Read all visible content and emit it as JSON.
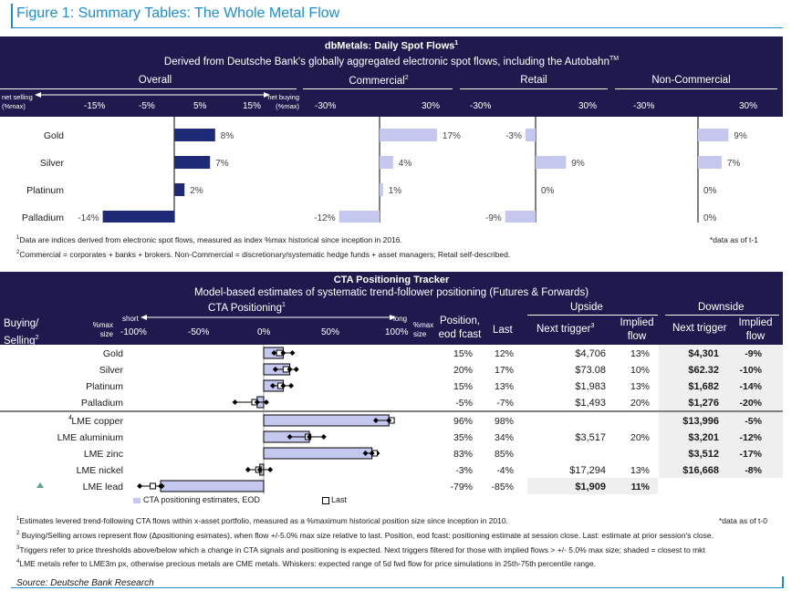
{
  "figure_title": "Figure 1: Summary Tables: The Whole Metal Flow",
  "spot": {
    "title": "dbMetals: Daily Spot Flows",
    "title_sup": "1",
    "subtitle": "Derived from Deutsche Bank's globally aggregated electronic spot flows, including the Autobahn",
    "subtitle_sup": "TM",
    "groups": [
      "Overall",
      "Commercial",
      "Retail",
      "Non-Commercial"
    ],
    "commercial_sup": "2",
    "left_arrow_label": "net selling (%max)",
    "right_arrow_label": "net buying (%max)",
    "overall_ticks": [
      "-15%",
      "-5%",
      "5%",
      "15%"
    ],
    "other_ticks": [
      "-30%",
      "30%"
    ],
    "notes": [
      {
        "sup": "1",
        "text": "Data are indices derived from electronic spot flows, measured as index %max historical since inception in 2016."
      },
      {
        "sup": "2",
        "text": "Commercial = corporates + banks + brokers. Non-Commercial = discretionary/systematic hedge funds + asset managers; Retail self-described."
      }
    ],
    "data_asof": "*data as of t-1"
  },
  "cta": {
    "title": "CTA Positioning Tracker",
    "subtitle": "Model-based estimates of systematic trend-follower positioning (Futures & Forwards)",
    "positioning_label": "CTA Positioning",
    "positioning_sup": "1",
    "buying_selling": "Buying/ Selling",
    "buying_sup": "2",
    "short_label": "short",
    "long_label": "long",
    "max_size": "%max size",
    "ticks": [
      "-100%",
      "-50%",
      "0%",
      "50%",
      "100%"
    ],
    "col_position": "Position, eod fcast",
    "col_last": "Last",
    "upside": "Upside",
    "downside": "Downside",
    "next_trigger": "Next trigger",
    "next_trigger_sup": "3",
    "implied_flow": "Implied flow",
    "lme_sup": "4",
    "legend_estimates": "CTA positioning estimates, EOD",
    "legend_last": "Last",
    "notes": [
      {
        "sup": "1",
        "text": "Estimates levered trend-following CTA flows within x-asset portfolio, measured  as a %maximum historical position size since inception in 2010."
      },
      {
        "sup": "2",
        "text": " Buying/Selling arrows represent flow (Δpositioning esimates), when flow +/-5.0% max size relative to last. Position, eod fcast: positioning estimate at session close. Last: estimate at prior session's close."
      },
      {
        "sup": "3",
        "text": "Triggers refer to price thresholds above/below which a change in CTA signals and positioning is expected. Next triggers filtered for those with implied flows > +/- 5.0% max size; shaded = closest to mkt"
      },
      {
        "sup": "4",
        "text": "LME metals refer to LME3m px, otherwise precious metals are CME metals. Whiskers: expected range of 5d fwd flow for price simulations in 25th-75th percentile range."
      }
    ],
    "data_asof": "*data as of t-0"
  },
  "source": "Source: Deutsche Bank Research",
  "chart_data": [
    {
      "type": "bar",
      "title": "dbMetals: Daily Spot Flows",
      "categories": [
        "Gold",
        "Silver",
        "Platinum",
        "Palladium"
      ],
      "series": [
        {
          "name": "Overall",
          "values": [
            8,
            7,
            2,
            -14
          ],
          "labels": [
            "8%",
            "7%",
            "2%",
            "-14%"
          ],
          "xlim": [
            -15,
            15
          ]
        },
        {
          "name": "Commercial",
          "values": [
            17,
            4,
            1,
            -12
          ],
          "labels": [
            "17%",
            "4%",
            "1%",
            "-12%"
          ],
          "xlim": [
            -30,
            30
          ]
        },
        {
          "name": "Retail",
          "values": [
            -3,
            9,
            0,
            -9
          ],
          "labels": [
            "-3%",
            "9%",
            "0%",
            "-9%"
          ],
          "xlim": [
            -30,
            30
          ]
        },
        {
          "name": "Non-Commercial",
          "values": [
            9,
            7,
            0,
            0
          ],
          "labels": [
            "9%",
            "7%",
            "0%",
            "0%"
          ],
          "xlim": [
            -30,
            30
          ]
        }
      ]
    },
    {
      "type": "table",
      "title": "CTA Positioning Tracker",
      "xlim": [
        -100,
        100
      ],
      "rows": [
        {
          "name": "Gold",
          "position": 15,
          "last": 12,
          "whisker": [
            8,
            22
          ],
          "arrow": "",
          "up_trigger": "$4,706",
          "up_flow": "13%",
          "down_trigger": "$4,301",
          "down_flow": "-9%",
          "shaded": "down"
        },
        {
          "name": "Silver",
          "position": 20,
          "last": 17,
          "whisker": [
            9,
            25
          ],
          "arrow": "",
          "up_trigger": "$73.08",
          "up_flow": "10%",
          "down_trigger": "$62.32",
          "down_flow": "-10%",
          "shaded": "down"
        },
        {
          "name": "Platinum",
          "position": 15,
          "last": 13,
          "whisker": [
            7,
            21
          ],
          "arrow": "",
          "up_trigger": "$1,983",
          "up_flow": "13%",
          "down_trigger": "$1,682",
          "down_flow": "-14%",
          "shaded": "down"
        },
        {
          "name": "Palladium",
          "position": -5,
          "last": -7,
          "whisker": [
            -22,
            2
          ],
          "arrow": "",
          "up_trigger": "$1,493",
          "up_flow": "20%",
          "down_trigger": "$1,276",
          "down_flow": "-20%",
          "shaded": "down"
        },
        {
          "name": "LME copper",
          "position": 96,
          "last": 98,
          "whisker": [
            86,
            98
          ],
          "arrow": "",
          "up_trigger": "",
          "up_flow": "",
          "down_trigger": "$13,996",
          "down_flow": "-5%",
          "shaded": "down"
        },
        {
          "name": "LME aluminium",
          "position": 35,
          "last": 34,
          "whisker": [
            20,
            46
          ],
          "arrow": "",
          "up_trigger": "$3,517",
          "up_flow": "20%",
          "down_trigger": "$3,201",
          "down_flow": "-12%",
          "shaded": "down"
        },
        {
          "name": "LME zinc",
          "position": 83,
          "last": 85,
          "whisker": [
            78,
            87
          ],
          "arrow": "",
          "up_trigger": "",
          "up_flow": "",
          "down_trigger": "$3,512",
          "down_flow": "-17%",
          "shaded": "down"
        },
        {
          "name": "LME nickel",
          "position": -3,
          "last": -4,
          "whisker": [
            -12,
            5
          ],
          "arrow": "",
          "up_trigger": "$17,294",
          "up_flow": "13%",
          "down_trigger": "$16,668",
          "down_flow": "-8%",
          "shaded": "down"
        },
        {
          "name": "LME lead",
          "position": -79,
          "last": -85,
          "whisker": [
            -95,
            -78
          ],
          "arrow": "up",
          "up_trigger": "$1,909",
          "up_flow": "11%",
          "down_trigger": "",
          "down_flow": "",
          "shaded": "up"
        }
      ]
    }
  ]
}
